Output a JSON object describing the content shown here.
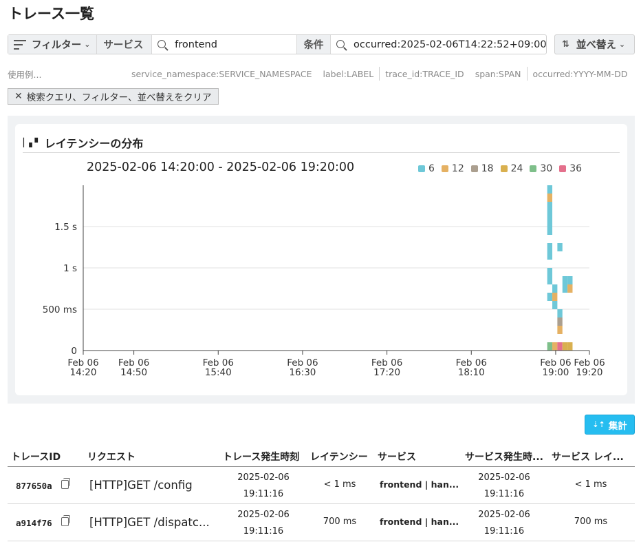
{
  "page": {
    "title": "トレース一覧"
  },
  "filterbar": {
    "filter_label": "フィルター",
    "service_label": "サービス",
    "service_value": "frontend",
    "condition_label": "条件",
    "condition_value": "occurred:2025-02-06T14:22:52+09:00"
  },
  "sort": {
    "label": "並べ替え"
  },
  "examples": {
    "label": "使用例...",
    "items": [
      "service_namespace:SERVICE_NAMESPACE",
      "label:LABEL",
      "trace_id:TRACE_ID",
      "span:SPAN",
      "occurred:YYYY-MM-DD"
    ]
  },
  "clear_button": {
    "label": "検索クエリ、フィルター、並べ替えをクリア"
  },
  "latency_panel": {
    "title": "レイテンシーの分布",
    "range": "2025-02-06 14:20:00 - 2025-02-06 19:20:00"
  },
  "chart_data": {
    "type": "heatmap",
    "legend": [
      {
        "label": "6",
        "color": "#6ec8d8"
      },
      {
        "label": "12",
        "color": "#e5b163"
      },
      {
        "label": "18",
        "color": "#ab9f8f"
      },
      {
        "label": "24",
        "color": "#d9b04f"
      },
      {
        "label": "30",
        "color": "#7ebf8a"
      },
      {
        "label": "36",
        "color": "#e4708c"
      }
    ],
    "y_ticks": [
      {
        "value": 0,
        "label": "0"
      },
      {
        "value": 500,
        "label": "500 ms"
      },
      {
        "value": 1000,
        "label": "1 s"
      },
      {
        "value": 1500,
        "label": "1.5 s"
      }
    ],
    "ylim_ms": [
      0,
      2000
    ],
    "x_ticks": [
      {
        "time": "14:20",
        "line1": "Feb 06",
        "line2": "14:20"
      },
      {
        "time": "14:50",
        "line1": "Feb 06",
        "line2": "14:50"
      },
      {
        "time": "15:40",
        "line1": "Feb 06",
        "line2": "15:40"
      },
      {
        "time": "16:30",
        "line1": "Feb 06",
        "line2": "16:30"
      },
      {
        "time": "17:20",
        "line1": "Feb 06",
        "line2": "17:20"
      },
      {
        "time": "18:10",
        "line1": "Feb 06",
        "line2": "18:10"
      },
      {
        "time": "19:00",
        "line1": "Feb 06",
        "line2": "19:00"
      },
      {
        "time": "19:20",
        "line1": "Feb 06",
        "line2": "19:20"
      }
    ],
    "xlim": [
      "14:20",
      "19:20"
    ],
    "bin_minutes": 3,
    "bin_ms": 100,
    "cells": [
      {
        "t": "18:55",
        "ms": 1900,
        "series": "6"
      },
      {
        "t": "18:55",
        "ms": 1800,
        "series": "12"
      },
      {
        "t": "18:55",
        "ms": 1700,
        "series": "6"
      },
      {
        "t": "18:55",
        "ms": 1600,
        "series": "6"
      },
      {
        "t": "18:55",
        "ms": 1500,
        "series": "6"
      },
      {
        "t": "18:55",
        "ms": 1400,
        "series": "6"
      },
      {
        "t": "18:55",
        "ms": 1200,
        "series": "6"
      },
      {
        "t": "18:55",
        "ms": 1100,
        "series": "6"
      },
      {
        "t": "18:55",
        "ms": 900,
        "series": "6"
      },
      {
        "t": "18:55",
        "ms": 800,
        "series": "6"
      },
      {
        "t": "18:55",
        "ms": 600,
        "series": "6"
      },
      {
        "t": "18:55",
        "ms": 0,
        "series": "30"
      },
      {
        "t": "18:58",
        "ms": 700,
        "series": "6"
      },
      {
        "t": "18:58",
        "ms": 600,
        "series": "12"
      },
      {
        "t": "18:58",
        "ms": 500,
        "series": "6"
      },
      {
        "t": "18:58",
        "ms": 0,
        "series": "12"
      },
      {
        "t": "19:01",
        "ms": 1200,
        "series": "6"
      },
      {
        "t": "19:01",
        "ms": 400,
        "series": "6"
      },
      {
        "t": "19:01",
        "ms": 300,
        "series": "18"
      },
      {
        "t": "19:01",
        "ms": 200,
        "series": "12"
      },
      {
        "t": "19:01",
        "ms": 0,
        "series": "36"
      },
      {
        "t": "19:04",
        "ms": 800,
        "series": "6"
      },
      {
        "t": "19:04",
        "ms": 700,
        "series": "6"
      },
      {
        "t": "19:04",
        "ms": 0,
        "series": "24"
      },
      {
        "t": "19:07",
        "ms": 800,
        "series": "6"
      },
      {
        "t": "19:07",
        "ms": 700,
        "series": "12"
      },
      {
        "t": "19:07",
        "ms": 0,
        "series": "24"
      }
    ]
  },
  "aggregate_button": {
    "label": "集計"
  },
  "table": {
    "columns": [
      "トレースID",
      "リクエスト",
      "トレース発生時刻",
      "レイテンシー",
      "サービス",
      "サービス発生時...",
      "サービス レイ..."
    ],
    "rows": [
      {
        "trace_id": "877650a",
        "request": "[HTTP]GET /config",
        "trace_date": "2025-02-06",
        "trace_time": "19:11:16",
        "latency": "< 1 ms",
        "service": "frontend | han...",
        "service_date": "2025-02-06",
        "service_time": "19:11:16",
        "service_latency": "< 1 ms"
      },
      {
        "trace_id": "a914f76",
        "request": "[HTTP]GET /dispatc...",
        "trace_date": "2025-02-06",
        "trace_time": "19:11:16",
        "latency": "700 ms",
        "service": "frontend | han...",
        "service_date": "2025-02-06",
        "service_time": "19:11:16",
        "service_latency": "700 ms"
      }
    ]
  }
}
